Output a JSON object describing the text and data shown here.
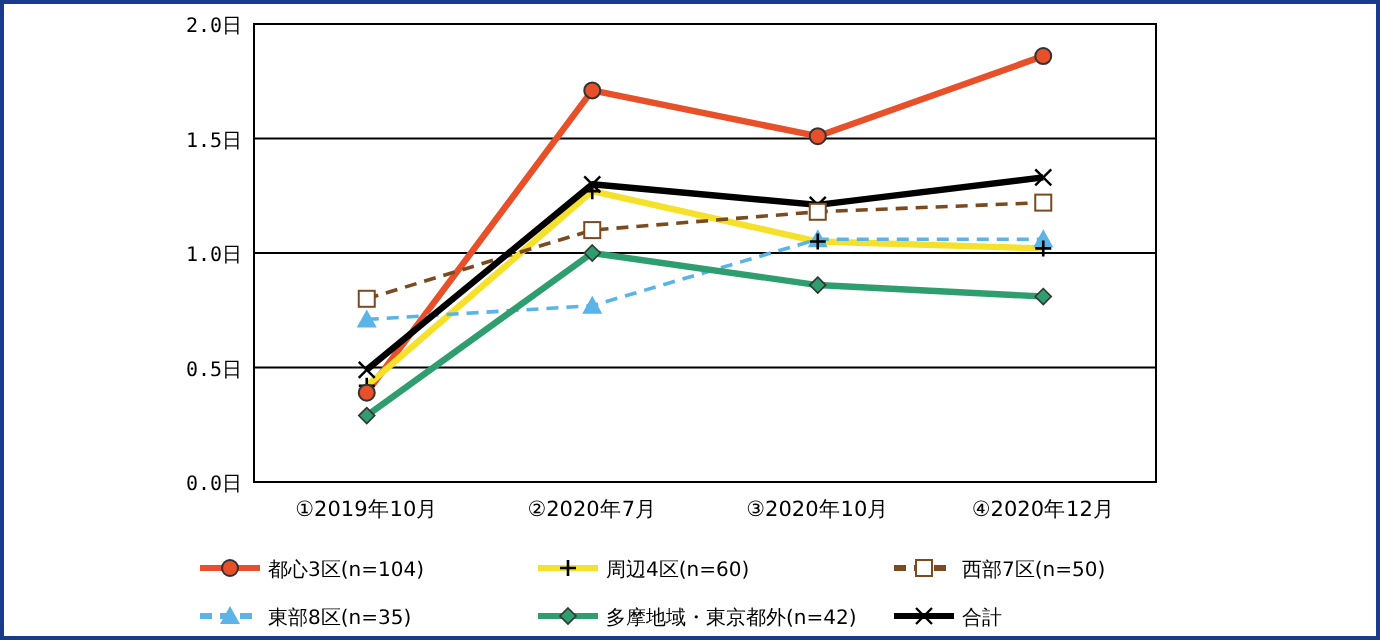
{
  "chart_data": {
    "type": "line",
    "categories": [
      "①2019年10月",
      "②2020年7月",
      "③2020年10月",
      "④2020年12月"
    ],
    "series": [
      {
        "name": "都心3区(n=104)",
        "color": "#e8502a",
        "values": [
          0.39,
          1.71,
          1.51,
          1.86
        ],
        "marker": "circle",
        "line_style": "solid"
      },
      {
        "name": "周辺4区(n=60)",
        "color": "#f5e02a",
        "values": [
          0.42,
          1.27,
          1.05,
          1.02
        ],
        "marker": "plus",
        "line_style": "solid"
      },
      {
        "name": "西部7区(n=50)",
        "color": "#7b4a1e",
        "values": [
          0.8,
          1.1,
          1.18,
          1.22
        ],
        "marker": "square",
        "line_style": "dashed"
      },
      {
        "name": "東部8区(n=35)",
        "color": "#5ab4e8",
        "values": [
          0.71,
          0.77,
          1.06,
          1.06
        ],
        "marker": "triangle",
        "line_style": "dashed"
      },
      {
        "name": "多摩地域・東京都外(n=42)",
        "color": "#2e9e6e",
        "values": [
          0.29,
          1.0,
          0.86,
          0.81
        ],
        "marker": "diamond",
        "line_style": "solid"
      },
      {
        "name": "合計",
        "color": "#000000",
        "values": [
          0.49,
          1.3,
          1.21,
          1.33
        ],
        "marker": "cross",
        "line_style": "solid"
      }
    ],
    "ylim": [
      0,
      2
    ],
    "yticks": [
      {
        "value": 0,
        "label": "0.0日"
      },
      {
        "value": 0.5,
        "label": "0.5日"
      },
      {
        "value": 1,
        "label": "1.0日"
      },
      {
        "value": 1.5,
        "label": "1.5日"
      },
      {
        "value": 2,
        "label": "2.0日"
      }
    ],
    "grid": "y",
    "legend": "bottom"
  }
}
